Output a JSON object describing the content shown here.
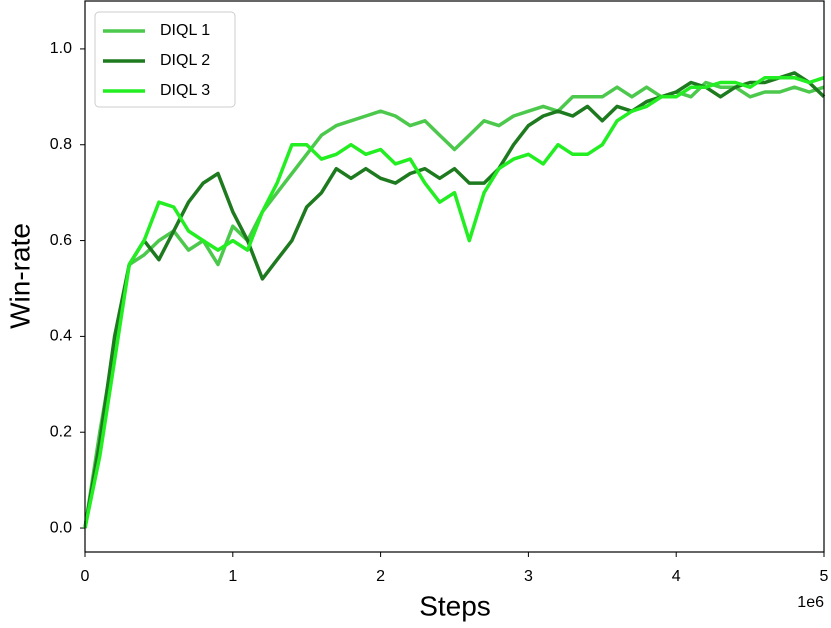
{
  "chart_data": {
    "type": "line",
    "x_label": "Steps",
    "y_label": "Win-rate",
    "x_offset_label": "1e6",
    "x": [
      0,
      0.1,
      0.2,
      0.3,
      0.4,
      0.5,
      0.6,
      0.7,
      0.8,
      0.9,
      1.0,
      1.1,
      1.2,
      1.3,
      1.4,
      1.5,
      1.6,
      1.7,
      1.8,
      1.9,
      2.0,
      2.1,
      2.2,
      2.3,
      2.4,
      2.5,
      2.6,
      2.7,
      2.8,
      2.9,
      3.0,
      3.1,
      3.2,
      3.3,
      3.4,
      3.5,
      3.6,
      3.7,
      3.8,
      3.9,
      4.0,
      4.1,
      4.2,
      4.3,
      4.4,
      4.5,
      4.6,
      4.7,
      4.8,
      4.9,
      5.0
    ],
    "series": [
      {
        "name": "DIQL 1",
        "color": "#4cc94c",
        "values": [
          0,
          0.2,
          0.38,
          0.55,
          0.57,
          0.6,
          0.62,
          0.58,
          0.6,
          0.55,
          0.63,
          0.6,
          0.66,
          0.7,
          0.74,
          0.78,
          0.82,
          0.84,
          0.85,
          0.86,
          0.87,
          0.86,
          0.84,
          0.85,
          0.82,
          0.79,
          0.82,
          0.85,
          0.84,
          0.86,
          0.87,
          0.88,
          0.87,
          0.9,
          0.9,
          0.9,
          0.92,
          0.9,
          0.92,
          0.9,
          0.91,
          0.9,
          0.93,
          0.92,
          0.92,
          0.9,
          0.91,
          0.91,
          0.92,
          0.91,
          0.92
        ]
      },
      {
        "name": "DIQL 2",
        "color": "#1e7a1e",
        "values": [
          0,
          0.18,
          0.4,
          0.55,
          0.6,
          0.56,
          0.62,
          0.68,
          0.72,
          0.74,
          0.66,
          0.6,
          0.52,
          0.56,
          0.6,
          0.67,
          0.7,
          0.75,
          0.73,
          0.75,
          0.73,
          0.72,
          0.74,
          0.75,
          0.73,
          0.75,
          0.72,
          0.72,
          0.75,
          0.8,
          0.84,
          0.86,
          0.87,
          0.86,
          0.88,
          0.85,
          0.88,
          0.87,
          0.89,
          0.9,
          0.91,
          0.93,
          0.92,
          0.9,
          0.92,
          0.93,
          0.93,
          0.94,
          0.95,
          0.93,
          0.9
        ]
      },
      {
        "name": "DIQL 3",
        "color": "#22ee22",
        "values": [
          0,
          0.15,
          0.35,
          0.55,
          0.6,
          0.68,
          0.67,
          0.62,
          0.6,
          0.58,
          0.6,
          0.58,
          0.66,
          0.72,
          0.8,
          0.8,
          0.77,
          0.78,
          0.8,
          0.78,
          0.79,
          0.76,
          0.77,
          0.72,
          0.68,
          0.7,
          0.6,
          0.7,
          0.75,
          0.77,
          0.78,
          0.76,
          0.8,
          0.78,
          0.78,
          0.8,
          0.85,
          0.87,
          0.88,
          0.9,
          0.9,
          0.92,
          0.92,
          0.93,
          0.93,
          0.92,
          0.94,
          0.94,
          0.94,
          0.93,
          0.94
        ]
      }
    ],
    "xlim": [
      0,
      5
    ],
    "xticks": [
      0,
      1,
      2,
      3,
      4,
      5
    ],
    "ylim": [
      -0.05,
      1.1
    ],
    "yticks": [
      {
        "value": 0,
        "label": "0.0"
      },
      {
        "value": 0.2,
        "label": "0.2"
      },
      {
        "value": 0.4,
        "label": "0.4"
      },
      {
        "value": 0.6,
        "label": "0.6"
      },
      {
        "value": 0.8,
        "label": "0.8"
      },
      {
        "value": 1,
        "label": "1.0"
      }
    ],
    "legend": "upper left"
  }
}
